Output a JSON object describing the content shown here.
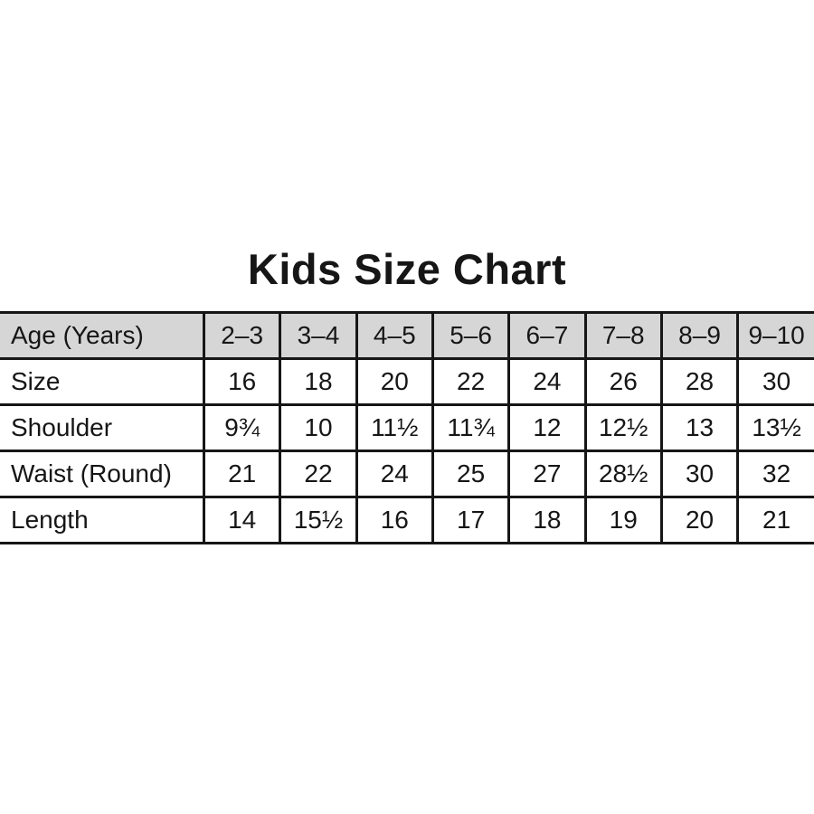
{
  "title": "Kids Size Chart",
  "chart_data": {
    "type": "table",
    "title": "Kids Size Chart",
    "columns": [
      "Age (Years)",
      "2–3",
      "3–4",
      "4–5",
      "5–6",
      "6–7",
      "7–8",
      "8–9",
      "9–10"
    ],
    "rows": [
      [
        "Size",
        "16",
        "18",
        "20",
        "22",
        "24",
        "26",
        "28",
        "30"
      ],
      [
        "Shoulder",
        "9¾",
        "10",
        "11½",
        "11¾",
        "12",
        "12½",
        "13",
        "13½"
      ],
      [
        "Waist (Round)",
        "21",
        "22",
        "24",
        "25",
        "27",
        "28½",
        "30",
        "32"
      ],
      [
        "Length",
        "14",
        "15½",
        "16",
        "17",
        "18",
        "19",
        "20",
        "21"
      ]
    ]
  },
  "colors": {
    "background": "#ffffff",
    "header_bg": "#d6d6d6",
    "border": "#161616",
    "text": "#161616"
  }
}
